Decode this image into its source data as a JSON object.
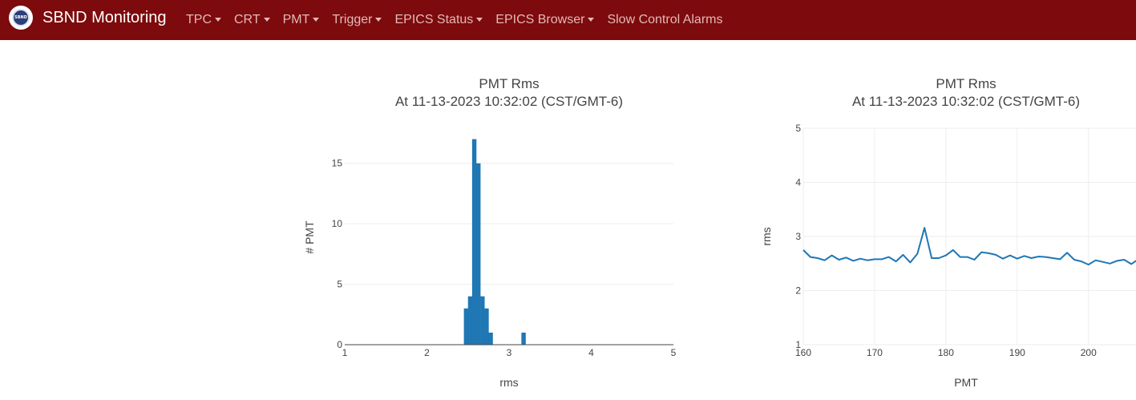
{
  "navbar": {
    "logo_text": "SBND",
    "brand": "SBND Monitoring",
    "items": [
      {
        "label": "TPC",
        "dropdown": true
      },
      {
        "label": "CRT",
        "dropdown": true
      },
      {
        "label": "PMT",
        "dropdown": true
      },
      {
        "label": "Trigger",
        "dropdown": true
      },
      {
        "label": "EPICS Status",
        "dropdown": true
      },
      {
        "label": "EPICS Browser",
        "dropdown": true
      },
      {
        "label": "Slow Control Alarms",
        "dropdown": false
      }
    ],
    "colors": {
      "background": "#7d0a0c",
      "link": "#e3b9b9"
    }
  },
  "chart_data": [
    {
      "type": "bar",
      "title": "PMT Rms",
      "subtitle": "At 11-13-2023 10:32:02 (CST/GMT-6)",
      "xlabel": "rms",
      "ylabel": "# PMT",
      "xlim": [
        1,
        5
      ],
      "ylim": [
        0,
        17.9
      ],
      "xticks": [
        1,
        2,
        3,
        4,
        5
      ],
      "yticks": [
        0,
        5,
        10,
        15
      ],
      "bin_width": 0.05,
      "bins": [
        {
          "x0": 2.45,
          "count": 3
        },
        {
          "x0": 2.5,
          "count": 4
        },
        {
          "x0": 2.55,
          "count": 17
        },
        {
          "x0": 2.6,
          "count": 15
        },
        {
          "x0": 2.65,
          "count": 4
        },
        {
          "x0": 2.7,
          "count": 3
        },
        {
          "x0": 2.75,
          "count": 1
        },
        {
          "x0": 3.15,
          "count": 1
        }
      ],
      "color": "#1f77b4",
      "grid": true
    },
    {
      "type": "line",
      "title": "PMT Rms",
      "subtitle": "At 11-13-2023 10:32:02 (CST/GMT-6)",
      "xlabel": "PMT",
      "ylabel": "rms",
      "xlim": [
        160,
        207
      ],
      "ylim": [
        1,
        5
      ],
      "xticks": [
        160,
        170,
        180,
        190,
        200
      ],
      "yticks": [
        1,
        2,
        3,
        4,
        5
      ],
      "x": [
        160,
        161,
        162,
        163,
        164,
        165,
        166,
        167,
        168,
        169,
        170,
        171,
        172,
        173,
        174,
        175,
        176,
        177,
        178,
        179,
        180,
        181,
        182,
        183,
        184,
        185,
        186,
        187,
        188,
        189,
        190,
        191,
        192,
        193,
        194,
        195,
        196,
        197,
        198,
        199,
        200,
        201,
        202,
        203,
        204,
        205,
        206,
        207
      ],
      "y": [
        2.75,
        2.62,
        2.6,
        2.56,
        2.65,
        2.57,
        2.61,
        2.55,
        2.59,
        2.56,
        2.58,
        2.58,
        2.62,
        2.54,
        2.66,
        2.52,
        2.68,
        3.16,
        2.6,
        2.6,
        2.65,
        2.75,
        2.62,
        2.62,
        2.57,
        2.71,
        2.69,
        2.66,
        2.59,
        2.65,
        2.59,
        2.64,
        2.6,
        2.63,
        2.62,
        2.6,
        2.58,
        2.7,
        2.57,
        2.54,
        2.48,
        2.56,
        2.53,
        2.5,
        2.55,
        2.57,
        2.49,
        2.58
      ],
      "color": "#1f77b4",
      "grid": true
    }
  ]
}
